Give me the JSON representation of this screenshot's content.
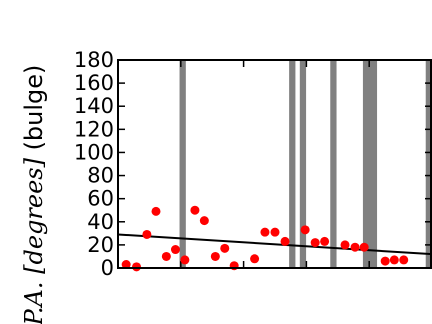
{
  "chart_data": {
    "type": "scatter",
    "ylabel": "P.A. [degrees] (bulge)",
    "ylabel_parts": {
      "italic": "P.A. [degrees]",
      "plain": " (bulge)"
    },
    "xlabel": "",
    "ylim": [
      0,
      180
    ],
    "xlim": [
      0,
      100
    ],
    "yticks": [
      0,
      20,
      40,
      60,
      80,
      100,
      120,
      140,
      160,
      180
    ],
    "x_ticks_labeled": false,
    "grid": false,
    "legend": "none",
    "colors": {
      "points": "#ff0000",
      "bands": "#808080",
      "fit": "#000000"
    },
    "bands": [
      {
        "x0": 19.6,
        "x1": 21.6
      },
      {
        "x0": 54.5,
        "x1": 56.5
      },
      {
        "x0": 57.9,
        "x1": 59.9
      },
      {
        "x0": 67.6,
        "x1": 69.6
      },
      {
        "x0": 78.0,
        "x1": 82.5
      },
      {
        "x0": 98.0,
        "x1": 100.0
      }
    ],
    "points": [
      {
        "x": 2.6,
        "y": 3
      },
      {
        "x": 5.9,
        "y": 1
      },
      {
        "x": 9.2,
        "y": 29
      },
      {
        "x": 12.1,
        "y": 49
      },
      {
        "x": 15.4,
        "y": 10
      },
      {
        "x": 18.3,
        "y": 16
      },
      {
        "x": 21.3,
        "y": 7
      },
      {
        "x": 24.5,
        "y": 50
      },
      {
        "x": 27.5,
        "y": 41
      },
      {
        "x": 31.0,
        "y": 10
      },
      {
        "x": 34.0,
        "y": 17
      },
      {
        "x": 37.0,
        "y": 2
      },
      {
        "x": 43.5,
        "y": 8
      },
      {
        "x": 46.8,
        "y": 31
      },
      {
        "x": 50.0,
        "y": 31
      },
      {
        "x": 53.2,
        "y": 23
      },
      {
        "x": 59.6,
        "y": 33
      },
      {
        "x": 62.8,
        "y": 22
      },
      {
        "x": 65.8,
        "y": 23
      },
      {
        "x": 72.3,
        "y": 20
      },
      {
        "x": 75.5,
        "y": 18
      },
      {
        "x": 78.4,
        "y": 18
      },
      {
        "x": 85.1,
        "y": 6
      },
      {
        "x": 88.0,
        "y": 7
      },
      {
        "x": 91.0,
        "y": 7
      }
    ],
    "fit_line": {
      "x": [
        0,
        100
      ],
      "y": [
        29,
        12
      ]
    }
  }
}
